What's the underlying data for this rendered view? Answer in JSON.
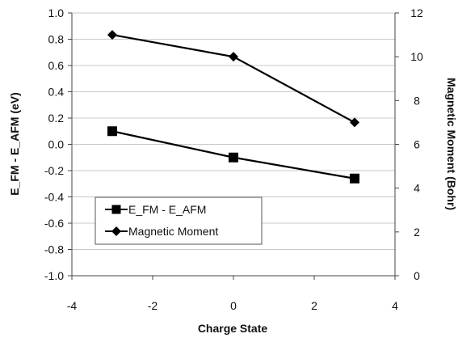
{
  "chart_data": {
    "type": "line",
    "title": "",
    "xlabel": "Charge State",
    "ylabel_left": "E_FM - E_AFM (eV)",
    "ylabel_right": "Magnetic Moment (Bohr)",
    "xlim": [
      -4,
      4
    ],
    "xticks": [
      -4,
      -2,
      0,
      2,
      4
    ],
    "ylim_left": [
      -1.0,
      1.0
    ],
    "yticks_left": [
      "1.0",
      "0.8",
      "0.6",
      "0.4",
      "0.2",
      "0.0",
      "-0.2",
      "-0.4",
      "-0.6",
      "-0.8",
      "-1.0"
    ],
    "ylim_right": [
      0,
      12
    ],
    "yticks_right": [
      "12",
      "10",
      "8",
      "6",
      "4",
      "2",
      "0"
    ],
    "grid": "horizontal",
    "legend_position": "lower-left",
    "series": [
      {
        "name": "E_FM - E_AFM",
        "axis": "left",
        "marker": "square",
        "color": "#000000",
        "x": [
          -3,
          0,
          3
        ],
        "y": [
          0.1,
          -0.1,
          -0.26
        ]
      },
      {
        "name": "Magnetic Moment",
        "axis": "right",
        "marker": "diamond",
        "color": "#000000",
        "x": [
          -3,
          0,
          3
        ],
        "y": [
          11,
          10,
          7
        ]
      }
    ]
  }
}
